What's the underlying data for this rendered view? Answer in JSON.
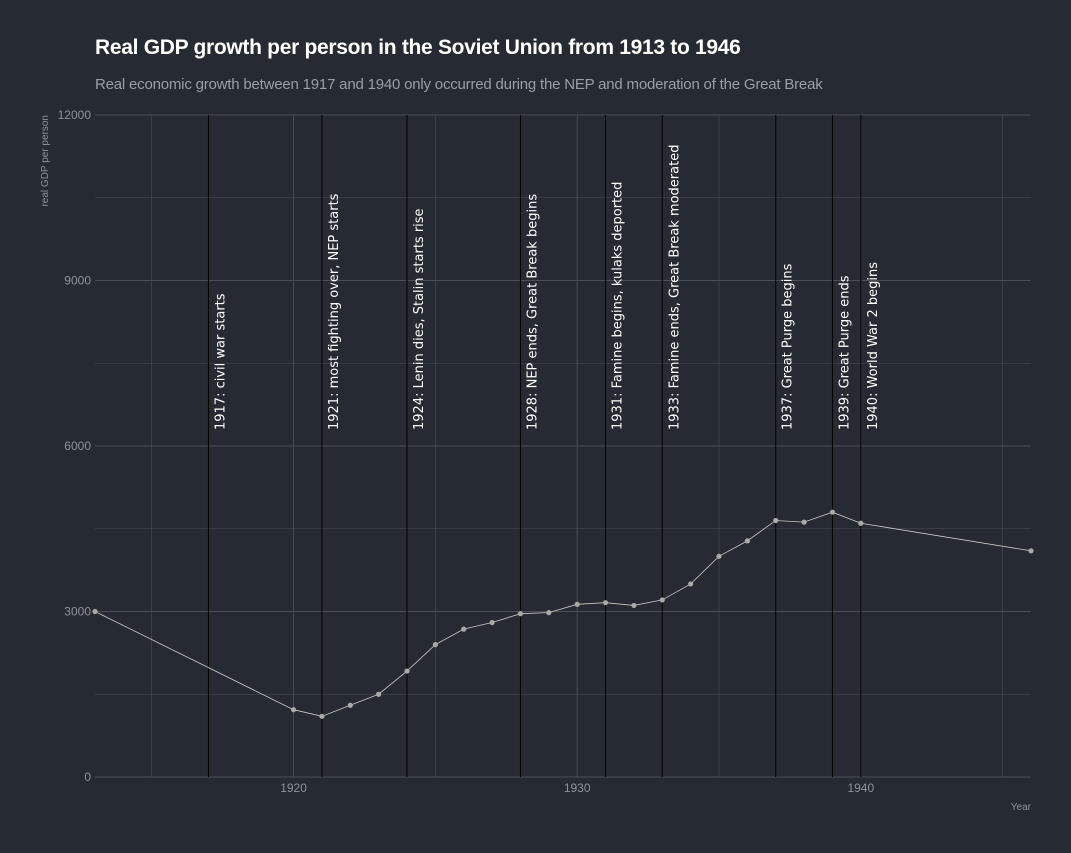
{
  "title": "Real GDP growth per person in the Soviet Union from 1913 to 1946",
  "subtitle": "Real economic growth between 1917 and 1940 only occurred during the NEP and moderation of the Great Break",
  "colors": {
    "background": "#262a32",
    "gridline": "#4a4e56",
    "line": "#c9c9c9",
    "point": "#a9a9a9",
    "event_line": "#000000"
  },
  "chart_data": {
    "type": "line",
    "title": "Real GDP growth per person in the Soviet Union from 1913 to 1946",
    "subtitle": "Real economic growth between 1917 and 1940 only occurred during the NEP and moderation of the Great Break",
    "xlabel": "Year",
    "ylabel": "real GDP per person",
    "xlim": [
      1913,
      1946
    ],
    "ylim": [
      0,
      12000
    ],
    "x_ticks": [
      1920,
      1930,
      1940
    ],
    "y_ticks": [
      0,
      3000,
      6000,
      9000,
      12000
    ],
    "grid": true,
    "legend": "none",
    "series": [
      {
        "x": [
          1913,
          1920,
          1921,
          1922,
          1923,
          1924,
          1925,
          1926,
          1927,
          1928,
          1929,
          1930,
          1931,
          1932,
          1933,
          1934,
          1935,
          1936,
          1937,
          1938,
          1939,
          1940,
          1946
        ],
        "values": [
          3000,
          1220,
          1100,
          1300,
          1500,
          1920,
          2400,
          2680,
          2800,
          2960,
          2980,
          3130,
          3160,
          3110,
          3210,
          3500,
          4000,
          4280,
          4650,
          4620,
          4800,
          4600,
          4100
        ]
      }
    ],
    "annotations": [
      {
        "x": 1917,
        "label": "1917: civil war starts"
      },
      {
        "x": 1921,
        "label": "1921: most fighting over, NEP starts"
      },
      {
        "x": 1924,
        "label": "1924: Lenin dies, Stalin starts rise"
      },
      {
        "x": 1928,
        "label": "1928: NEP ends, Great Break begins"
      },
      {
        "x": 1931,
        "label": "1931: Famine begins, kulaks deported"
      },
      {
        "x": 1933,
        "label": "1933: Famine ends, Great Break moderated"
      },
      {
        "x": 1937,
        "label": "1937: Great Purge begins"
      },
      {
        "x": 1939,
        "label": "1939: Great Purge ends"
      },
      {
        "x": 1940,
        "label": "1940: World War 2 begins"
      }
    ]
  }
}
